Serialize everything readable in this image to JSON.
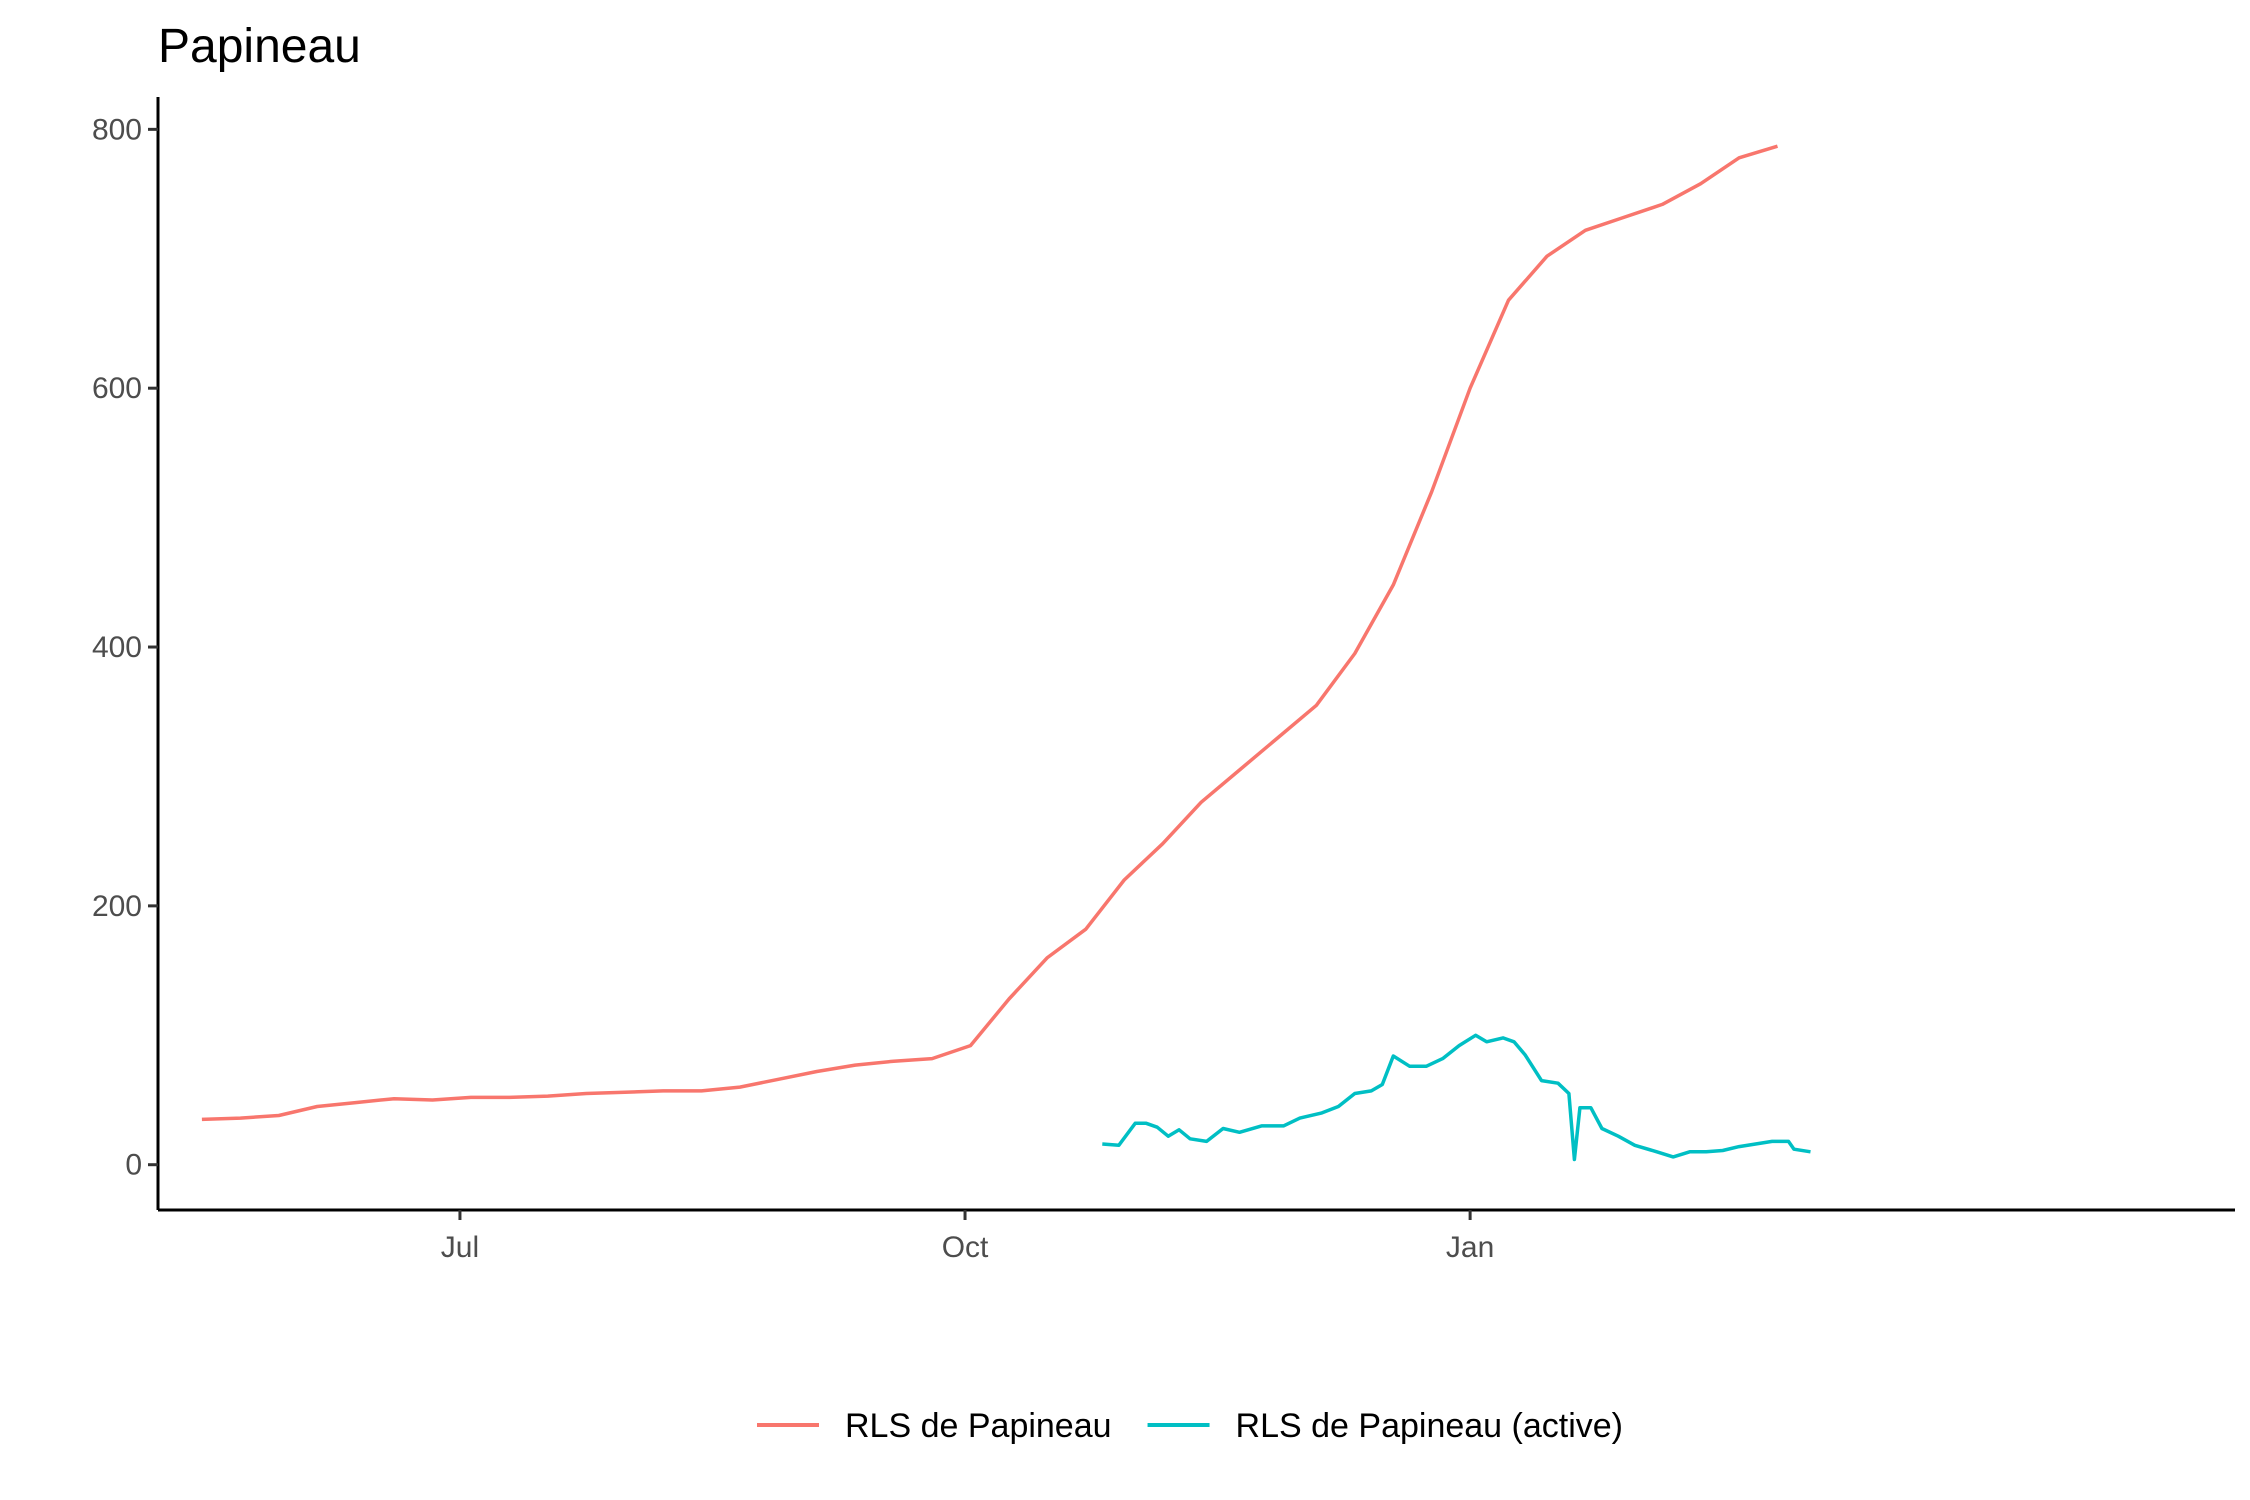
{
  "chart_data": {
    "type": "line",
    "title": "Papineau",
    "xlabel": "",
    "ylabel": "",
    "x_range": [
      "2020-05-07",
      "2021-02-20"
    ],
    "ylim": [
      -35,
      825
    ],
    "x_ticks": [
      {
        "date": "2020-07-01",
        "label": "Jul"
      },
      {
        "date": "2020-10-01",
        "label": "Oct"
      },
      {
        "date": "2021-01-01",
        "label": "Jan"
      }
    ],
    "y_ticks": [
      {
        "value": 0,
        "label": "0"
      },
      {
        "value": 200,
        "label": "200"
      },
      {
        "value": 400,
        "label": "400"
      },
      {
        "value": 600,
        "label": "600"
      },
      {
        "value": 800,
        "label": "800"
      }
    ],
    "grid": false,
    "legend_position": "bottom",
    "series": [
      {
        "name": "RLS de Papineau",
        "color": "#F8766D",
        "points": [
          [
            "2020-05-15",
            35
          ],
          [
            "2020-05-22",
            36
          ],
          [
            "2020-05-29",
            38
          ],
          [
            "2020-06-05",
            45
          ],
          [
            "2020-06-12",
            48
          ],
          [
            "2020-06-19",
            51
          ],
          [
            "2020-06-26",
            50
          ],
          [
            "2020-07-03",
            52
          ],
          [
            "2020-07-10",
            52
          ],
          [
            "2020-07-17",
            53
          ],
          [
            "2020-07-24",
            55
          ],
          [
            "2020-07-31",
            56
          ],
          [
            "2020-08-07",
            57
          ],
          [
            "2020-08-14",
            57
          ],
          [
            "2020-08-21",
            60
          ],
          [
            "2020-08-28",
            66
          ],
          [
            "2020-09-04",
            72
          ],
          [
            "2020-09-11",
            77
          ],
          [
            "2020-09-18",
            80
          ],
          [
            "2020-09-25",
            82
          ],
          [
            "2020-10-02",
            92
          ],
          [
            "2020-10-09",
            128
          ],
          [
            "2020-10-16",
            160
          ],
          [
            "2020-10-23",
            182
          ],
          [
            "2020-10-30",
            220
          ],
          [
            "2020-11-06",
            248
          ],
          [
            "2020-11-13",
            280
          ],
          [
            "2020-11-20",
            305
          ],
          [
            "2020-11-27",
            330
          ],
          [
            "2020-12-04",
            355
          ],
          [
            "2020-12-11",
            395
          ],
          [
            "2020-12-18",
            448
          ],
          [
            "2020-12-25",
            520
          ],
          [
            "2021-01-01",
            600
          ],
          [
            "2021-01-08",
            668
          ],
          [
            "2021-01-15",
            702
          ],
          [
            "2021-01-22",
            722
          ],
          [
            "2021-01-29",
            732
          ],
          [
            "2021-02-05",
            742
          ],
          [
            "2021-02-12",
            758
          ],
          [
            "2021-02-19",
            778
          ],
          [
            "2021-02-26",
            787
          ]
        ]
      },
      {
        "name": "RLS de Papineau (active)",
        "color": "#00BFC4",
        "points": [
          [
            "2020-10-26",
            16
          ],
          [
            "2020-10-29",
            15
          ],
          [
            "2020-11-01",
            32
          ],
          [
            "2020-11-03",
            32
          ],
          [
            "2020-11-05",
            29
          ],
          [
            "2020-11-07",
            22
          ],
          [
            "2020-11-09",
            27
          ],
          [
            "2020-11-11",
            20
          ],
          [
            "2020-11-14",
            18
          ],
          [
            "2020-11-17",
            28
          ],
          [
            "2020-11-20",
            25
          ],
          [
            "2020-11-24",
            30
          ],
          [
            "2020-11-28",
            30
          ],
          [
            "2020-12-01",
            36
          ],
          [
            "2020-12-05",
            40
          ],
          [
            "2020-12-08",
            45
          ],
          [
            "2020-12-11",
            55
          ],
          [
            "2020-12-14",
            57
          ],
          [
            "2020-12-16",
            62
          ],
          [
            "2020-12-18",
            84
          ],
          [
            "2020-12-21",
            76
          ],
          [
            "2020-12-24",
            76
          ],
          [
            "2020-12-27",
            82
          ],
          [
            "2020-12-30",
            92
          ],
          [
            "2021-01-02",
            100
          ],
          [
            "2021-01-04",
            95
          ],
          [
            "2021-01-07",
            98
          ],
          [
            "2021-01-09",
            95
          ],
          [
            "2021-01-11",
            85
          ],
          [
            "2021-01-14",
            65
          ],
          [
            "2021-01-17",
            63
          ],
          [
            "2021-01-19",
            55
          ],
          [
            "2021-01-20",
            4
          ],
          [
            "2021-01-21",
            44
          ],
          [
            "2021-01-23",
            44
          ],
          [
            "2021-01-25",
            28
          ],
          [
            "2021-01-28",
            22
          ],
          [
            "2021-01-31",
            15
          ],
          [
            "2021-02-04",
            10
          ],
          [
            "2021-02-07",
            6
          ],
          [
            "2021-02-10",
            10
          ],
          [
            "2021-02-13",
            10
          ],
          [
            "2021-02-16",
            11
          ],
          [
            "2021-02-19",
            14
          ],
          [
            "2021-02-22",
            16
          ],
          [
            "2021-02-25",
            18
          ],
          [
            "2021-02-28",
            18
          ],
          [
            "2021-03-01",
            12
          ],
          [
            "2021-03-04",
            10
          ]
        ]
      }
    ]
  }
}
